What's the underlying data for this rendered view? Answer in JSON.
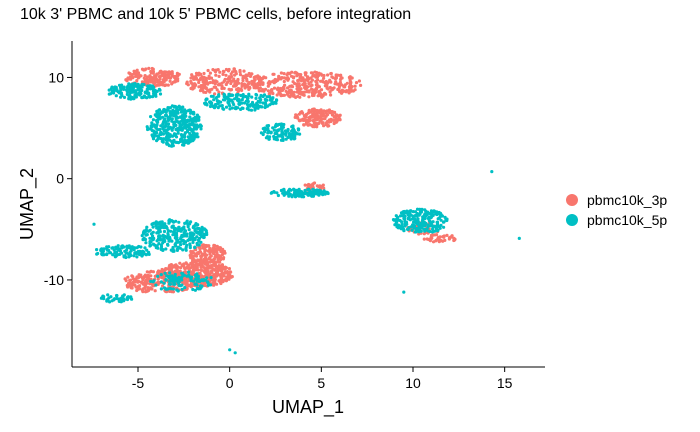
{
  "chart_data": {
    "type": "scatter",
    "title": "10k 3' PBMC and 10k 5' PBMC cells, before integration",
    "xlabel": "UMAP_1",
    "ylabel": "UMAP_2",
    "xlim": [
      -8.6,
      17.2
    ],
    "ylim": [
      -18.6,
      13.6
    ],
    "xticks": [
      -5,
      0,
      5,
      10,
      15
    ],
    "yticks": [
      10,
      0,
      -10
    ],
    "grid": false,
    "legend_position": "right",
    "series": [
      {
        "name": "pbmc10k_3p",
        "color": "#F8766D",
        "regions": [
          {
            "cx": 4.2,
            "cy": 9.3,
            "rx": 3.0,
            "ry": 1.3,
            "n": 340
          },
          {
            "cx": -0.3,
            "cy": 9.6,
            "rx": 2.2,
            "ry": 1.3,
            "n": 220
          },
          {
            "cx": -4.2,
            "cy": 10.0,
            "rx": 1.6,
            "ry": 0.9,
            "n": 160
          },
          {
            "cx": 4.8,
            "cy": 6.0,
            "rx": 1.3,
            "ry": 0.9,
            "n": 170
          },
          {
            "cx": -1.8,
            "cy": -9.4,
            "rx": 2.0,
            "ry": 1.3,
            "n": 360
          },
          {
            "cx": -3.8,
            "cy": -10.2,
            "rx": 2.0,
            "ry": 1.1,
            "n": 220
          },
          {
            "cx": -1.2,
            "cy": -7.5,
            "rx": 1.0,
            "ry": 1.0,
            "n": 140
          },
          {
            "cx": 4.6,
            "cy": -0.8,
            "rx": 0.6,
            "ry": 0.4,
            "n": 25
          },
          {
            "cx": 11.5,
            "cy": -5.9,
            "rx": 0.9,
            "ry": 0.4,
            "n": 40
          },
          {
            "cx": 10.6,
            "cy": -4.9,
            "rx": 0.9,
            "ry": 0.6,
            "n": 35
          }
        ]
      },
      {
        "name": "pbmc10k_5p",
        "color": "#00BFC4",
        "regions": [
          {
            "cx": -3.0,
            "cy": 5.2,
            "rx": 1.5,
            "ry": 2.0,
            "n": 380
          },
          {
            "cx": -5.2,
            "cy": 8.6,
            "rx": 1.5,
            "ry": 0.8,
            "n": 150
          },
          {
            "cx": 2.8,
            "cy": 4.6,
            "rx": 1.1,
            "ry": 0.9,
            "n": 110
          },
          {
            "cx": 0.6,
            "cy": 7.6,
            "rx": 2.0,
            "ry": 0.9,
            "n": 170
          },
          {
            "cx": -3.0,
            "cy": -5.6,
            "rx": 1.8,
            "ry": 1.6,
            "n": 280
          },
          {
            "cx": -5.8,
            "cy": -7.2,
            "rx": 1.6,
            "ry": 0.6,
            "n": 110
          },
          {
            "cx": 3.8,
            "cy": -1.4,
            "rx": 1.6,
            "ry": 0.4,
            "n": 110
          },
          {
            "cx": 10.4,
            "cy": -4.2,
            "rx": 1.5,
            "ry": 1.2,
            "n": 210
          },
          {
            "cx": -2.6,
            "cy": -10.2,
            "rx": 1.8,
            "ry": 1.0,
            "n": 100
          },
          {
            "cx": -6.2,
            "cy": -11.8,
            "rx": 0.9,
            "ry": 0.4,
            "n": 45
          }
        ],
        "outliers": [
          [
            14.3,
            0.7
          ],
          [
            15.8,
            -5.9
          ],
          [
            9.5,
            -11.2
          ],
          [
            0.3,
            -17.2
          ],
          [
            0.0,
            -16.9
          ],
          [
            -7.4,
            -4.5
          ]
        ]
      }
    ]
  }
}
